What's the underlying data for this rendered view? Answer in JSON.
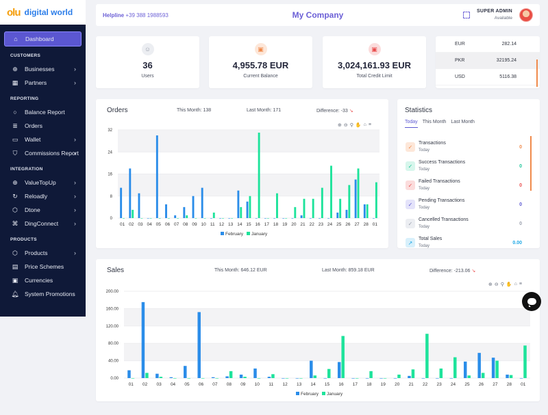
{
  "brand": {
    "logo_text": "olu",
    "name": "digital world"
  },
  "sidebar": {
    "dashboard": "Dashboard",
    "sections": {
      "customers": "CUSTOMERS",
      "reporting": "REPORTING",
      "integration": "INTEGRATION",
      "products": "PRODUCTS"
    },
    "customers_items": [
      {
        "label": "Businesses",
        "icon": "globe-icon",
        "chevron": true
      },
      {
        "label": "Partners",
        "icon": "building-icon",
        "chevron": true
      }
    ],
    "reporting_items": [
      {
        "label": "Balance Report",
        "icon": "circle-icon",
        "chevron": false
      },
      {
        "label": "Orders",
        "icon": "list-icon",
        "chevron": false
      },
      {
        "label": "Wallet",
        "icon": "wallet-icon",
        "chevron": true
      },
      {
        "label": "Commissions Report",
        "icon": "shield-icon",
        "chevron": true
      }
    ],
    "integration_items": [
      {
        "label": "ValueTopUp",
        "icon": "globe-icon",
        "chevron": true
      },
      {
        "label": "Reloadly",
        "icon": "refresh-icon",
        "chevron": true
      },
      {
        "label": "Dtone",
        "icon": "box-icon",
        "chevron": true
      },
      {
        "label": "DingConnect",
        "icon": "command-icon",
        "chevron": true
      }
    ],
    "products_items": [
      {
        "label": "Products",
        "icon": "box-icon",
        "chevron": true
      },
      {
        "label": "Price Schemes",
        "icon": "price-icon",
        "chevron": false
      },
      {
        "label": "Currencies",
        "icon": "money-icon",
        "chevron": false
      },
      {
        "label": "System Promotions",
        "icon": "bell-icon",
        "chevron": false
      }
    ]
  },
  "topbar": {
    "helpline_label": "Helpline",
    "helpline_number": "+39 388 1988593",
    "company": "My Company",
    "user_role": "SUPER ADMIN",
    "user_status": "Available"
  },
  "stats": [
    {
      "value": "36",
      "label": "Users",
      "color": "#9aa0ad",
      "bg": "#eceef2",
      "icon": "users-icon"
    },
    {
      "value": "4,955.78 EUR",
      "label": "Current Balance",
      "color": "#f08a4b",
      "bg": "#fde7d9",
      "icon": "money-icon"
    },
    {
      "value": "3,024,161.93 EUR",
      "label": "Total Credit Limit",
      "color": "#e94c4c",
      "bg": "#fbdcdc",
      "icon": "money-icon"
    }
  ],
  "rates": [
    {
      "currency": "EUR",
      "value": "282.14"
    },
    {
      "currency": "PKR",
      "value": "32195.24"
    },
    {
      "currency": "USD",
      "value": "5116.38"
    }
  ],
  "orders": {
    "title": "Orders",
    "this_month": "This Month: 138",
    "last_month": "Last Month: 171",
    "difference": "Difference: -33"
  },
  "sales": {
    "title": "Sales",
    "this_month": "This Month: 646.12 EUR",
    "last_month": "Last Month: 859.18 EUR",
    "difference": "Difference: -213.06"
  },
  "statistics": {
    "title": "Statistics",
    "tabs": [
      "Today",
      "This Month",
      "Last Month"
    ],
    "items": [
      {
        "name": "Transactions",
        "sub": "Today",
        "value": "0",
        "color": "#f08a4b",
        "bg": "#fde7d9",
        "icon": "check-icon"
      },
      {
        "name": "Success Transactions",
        "sub": "Today",
        "value": "0",
        "color": "#1fc59a",
        "bg": "#d7f6ec",
        "icon": "check-icon"
      },
      {
        "name": "Failed Transactions",
        "sub": "Today",
        "value": "0",
        "color": "#e94c4c",
        "bg": "#fbdcdc",
        "icon": "check-icon"
      },
      {
        "name": "Pending Transactions",
        "sub": "Today",
        "value": "0",
        "color": "#5b57d1",
        "bg": "#e4e3fa",
        "icon": "check-icon"
      },
      {
        "name": "Cancelled Transactions",
        "sub": "Today",
        "value": "0",
        "color": "#9aa0ad",
        "bg": "#eceef2",
        "icon": "check-icon"
      },
      {
        "name": "Total Sales",
        "sub": "Today",
        "value": "0.00",
        "color": "#1ea8e6",
        "bg": "#d8f0fb",
        "icon": "trend-icon"
      }
    ]
  },
  "chart_data": [
    {
      "type": "bar",
      "categories": [
        "01",
        "02",
        "03",
        "04",
        "05",
        "06",
        "07",
        "08",
        "09",
        "10",
        "11",
        "12",
        "13",
        "14",
        "15",
        "16",
        "17",
        "18",
        "19",
        "20",
        "21",
        "22",
        "23",
        "24",
        "25",
        "26",
        "27",
        "28",
        "01"
      ],
      "series": [
        {
          "name": "February",
          "color": "#2b8de9",
          "values": [
            11,
            18,
            9,
            0,
            30,
            5,
            1,
            4,
            8,
            11,
            0,
            0,
            0,
            10,
            6,
            0,
            0,
            0,
            0,
            0,
            1,
            0,
            0,
            0,
            2,
            3,
            14,
            5,
            0
          ]
        },
        {
          "name": "January",
          "color": "#1ee39b",
          "values": [
            0,
            3,
            0,
            0,
            0,
            0,
            0,
            1,
            0,
            0,
            2,
            0,
            0,
            4,
            8,
            31,
            0,
            9,
            0,
            4,
            7,
            7,
            11,
            19,
            7,
            12,
            18,
            5,
            13
          ]
        }
      ],
      "yticks": [
        0,
        8,
        16,
        24,
        32
      ],
      "ylim": [
        0,
        32
      ]
    },
    {
      "type": "bar",
      "categories": [
        "01",
        "02",
        "03",
        "04",
        "05",
        "06",
        "07",
        "08",
        "09",
        "10",
        "11",
        "12",
        "13",
        "14",
        "15",
        "16",
        "17",
        "18",
        "19",
        "20",
        "21",
        "22",
        "23",
        "24",
        "25",
        "26",
        "27",
        "28",
        "01"
      ],
      "series": [
        {
          "name": "February",
          "color": "#2b8de9",
          "values": [
            18,
            175,
            10,
            2,
            28,
            152,
            2,
            4,
            8,
            22,
            3,
            0,
            0,
            40,
            0,
            37,
            0,
            0,
            0,
            0,
            5,
            0,
            0,
            0,
            38,
            58,
            47,
            8,
            0
          ]
        },
        {
          "name": "January",
          "color": "#1ee39b",
          "values": [
            0,
            12,
            3,
            0,
            0,
            0,
            0,
            16,
            3,
            0,
            9,
            0,
            0,
            6,
            21,
            97,
            0,
            16,
            0,
            8,
            20,
            102,
            22,
            48,
            6,
            12,
            40,
            7,
            75
          ]
        }
      ],
      "yticks": [
        "0.00",
        "40.00",
        "80.00",
        "120.00",
        "160.00",
        "200.00"
      ],
      "ylim": [
        0,
        200
      ]
    }
  ]
}
